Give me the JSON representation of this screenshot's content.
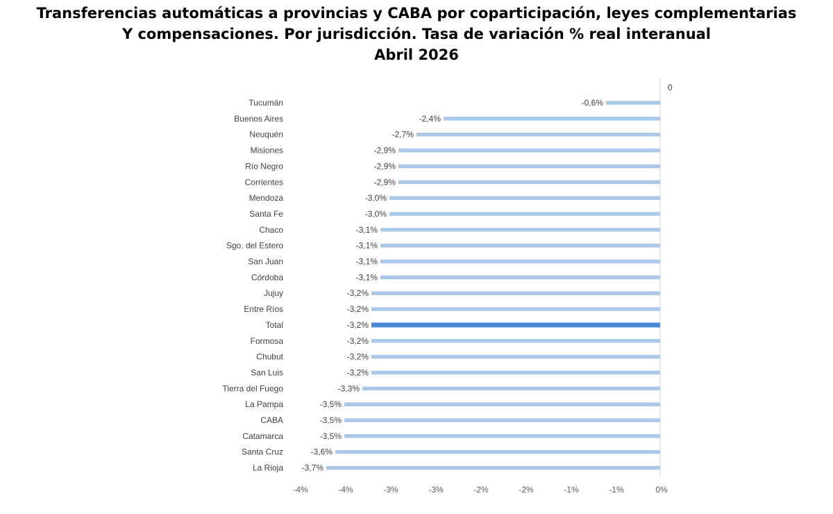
{
  "chart_data": {
    "type": "bar",
    "orientation": "horizontal",
    "title_lines": [
      "Transferencias automáticas a provincias y CABA por coparticipación, leyes complementarias",
      "Y compensaciones. Por jurisdicción. Tasa de variación % real interanual",
      "Abril 2026"
    ],
    "categories": [
      "Tucumán",
      "Buenos Aires",
      "Neuquén",
      "Misiones",
      "Río Negro",
      "Corrientes",
      "Mendoza",
      "Santa Fe",
      "Chaco",
      "Sgo. del Estero",
      "San Juan",
      "Córdoba",
      "Jujuy",
      "Entre Ríos",
      "Total",
      "Formosa",
      "Chubut",
      "San Luis",
      "Tierra del Fuego",
      "La Pampa",
      "CABA",
      "Catamarca",
      "Santa Cruz",
      "La Rioja"
    ],
    "values": [
      -0.6,
      -2.4,
      -2.7,
      -2.9,
      -2.9,
      -2.9,
      -3.0,
      -3.0,
      -3.1,
      -3.1,
      -3.1,
      -3.1,
      -3.2,
      -3.2,
      -3.2,
      -3.2,
      -3.2,
      -3.2,
      -3.3,
      -3.5,
      -3.5,
      -3.5,
      -3.6,
      -3.7
    ],
    "data_labels": [
      "-0,6%",
      "-2,4%",
      "-2,7%",
      "-2,9%",
      "-2,9%",
      "-2,9%",
      "-3,0%",
      "-3,0%",
      "-3,1%",
      "-3,1%",
      "-3,1%",
      "-3,1%",
      "-3,2%",
      "-3,2%",
      "-3,2%",
      "-3,2%",
      "-3,2%",
      "-3,2%",
      "-3,3%",
      "-3,5%",
      "-3,5%",
      "-3,5%",
      "-3,6%",
      "-3,7%"
    ],
    "highlight_category": "Total",
    "xlim": [
      -4.0,
      0
    ],
    "x_ticks": [
      "-4%",
      "-4%",
      "-3%",
      "-3%",
      "-2%",
      "-2%",
      "-1%",
      "-1%",
      "0%"
    ],
    "top_axis_label": "0",
    "xlabel": "",
    "ylabel": "",
    "grid": false,
    "legend": "none",
    "colors": {
      "bar": "#a9c8ea",
      "highlight": "#4a8ad6",
      "axis": "#d0d0d0"
    }
  }
}
